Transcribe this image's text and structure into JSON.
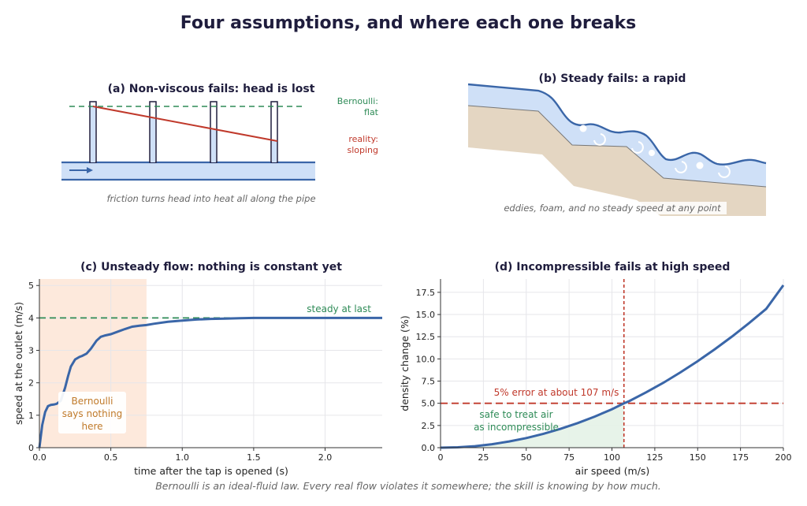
{
  "title": "Four assumptions, and where each one breaks",
  "caption": "Bernoulli is an ideal-fluid law. Every real flow violates it somewhere; the skill is knowing by how much.",
  "colors": {
    "navy": "#1f1d3d",
    "blue": "#3a66a8",
    "lightblue": "#cfe0f7",
    "green": "#2e8b57",
    "red": "#c0392b",
    "orange": "#c07a2a",
    "soil": "#e4d6c2",
    "grey": "#666666"
  },
  "panels": {
    "a": {
      "title": "(a) Non-viscous fails: head is lost",
      "bernoulli_line1": "Bernoulli:",
      "bernoulli_line2": "flat",
      "reality_line1": "reality:",
      "reality_line2": "sloping",
      "note": "friction turns head into heat all along the pipe"
    },
    "b": {
      "title": "(b) Steady fails: a rapid",
      "note": "eddies, foam, and no steady speed at any point"
    },
    "c": {
      "title": "(c) Unsteady flow: nothing is constant yet",
      "steady_label": "steady at last",
      "shade_line1": "Bernoulli",
      "shade_line2": "says nothing",
      "shade_line3": "here"
    },
    "d": {
      "title": "(d) Incompressible fails at high speed",
      "error_label": "5% error at about 107 m/s",
      "safe_line1": "safe to treat air",
      "safe_line2": "as incompressible"
    }
  },
  "chart_data": [
    {
      "type": "line",
      "panel": "c",
      "title": "(c) Unsteady flow: nothing is constant yet",
      "xlabel": "time after the tap is opened   (s)",
      "ylabel": "speed at the outlet  (m/s)",
      "xlim": [
        0,
        2.4
      ],
      "ylim": [
        0,
        5.2
      ],
      "xticks": [
        0.0,
        0.5,
        1.0,
        1.5,
        2.0
      ],
      "xtick_labels": [
        "0.0",
        "0.5",
        "1.0",
        "1.5",
        "2.0"
      ],
      "yticks": [
        0,
        1,
        2,
        3,
        4,
        5
      ],
      "ytick_labels": [
        "0",
        "1",
        "2",
        "3",
        "4",
        "5"
      ],
      "grid": true,
      "series": [
        {
          "x": [
            0,
            0.02,
            0.04,
            0.06,
            0.08,
            0.1,
            0.12,
            0.15,
            0.18,
            0.2,
            0.22,
            0.25,
            0.28,
            0.3,
            0.33,
            0.36,
            0.4,
            0.43,
            0.46,
            0.5,
            0.55,
            0.6,
            0.65,
            0.7,
            0.75,
            0.8,
            0.9,
            1.0,
            1.1,
            1.2,
            1.3,
            1.4,
            1.5,
            1.7,
            1.9,
            2.1,
            2.4
          ],
          "y": [
            0,
            0.7,
            1.1,
            1.28,
            1.32,
            1.33,
            1.35,
            1.45,
            1.85,
            2.2,
            2.5,
            2.72,
            2.8,
            2.83,
            2.9,
            3.05,
            3.3,
            3.42,
            3.46,
            3.5,
            3.58,
            3.66,
            3.73,
            3.76,
            3.78,
            3.82,
            3.88,
            3.92,
            3.95,
            3.97,
            3.98,
            3.99,
            4.0,
            4.0,
            4.0,
            4.0,
            4.0
          ]
        }
      ],
      "steady_value": 4.0,
      "shaded_x": [
        0,
        0.75
      ]
    },
    {
      "type": "line",
      "panel": "d",
      "title": "(d) Incompressible fails at high speed",
      "xlabel": "air speed   (m/s)",
      "ylabel": "density change   (%)",
      "xlim": [
        0,
        200
      ],
      "ylim": [
        0,
        19
      ],
      "xticks": [
        0,
        25,
        50,
        75,
        100,
        125,
        150,
        175,
        200
      ],
      "xtick_labels": [
        "0",
        "25",
        "50",
        "75",
        "100",
        "125",
        "150",
        "175",
        "200"
      ],
      "yticks": [
        0,
        2.5,
        5,
        7.5,
        10,
        12.5,
        15,
        17.5
      ],
      "ytick_labels": [
        "0.0",
        "2.5",
        "5.0",
        "7.5",
        "10.0",
        "12.5",
        "15.0",
        "17.5"
      ],
      "grid": true,
      "series": [
        {
          "x": [
            0,
            10,
            20,
            30,
            40,
            50,
            60,
            70,
            80,
            90,
            100,
            107,
            110,
            120,
            130,
            140,
            150,
            160,
            170,
            180,
            190,
            200
          ],
          "y": [
            0,
            0.04,
            0.17,
            0.39,
            0.7,
            1.08,
            1.56,
            2.12,
            2.77,
            3.51,
            4.33,
            5.0,
            5.24,
            6.24,
            7.32,
            8.49,
            9.75,
            11.09,
            12.52,
            14.04,
            15.64,
            18.3
          ]
        }
      ],
      "threshold_y": 5.0,
      "threshold_x": 107
    }
  ]
}
